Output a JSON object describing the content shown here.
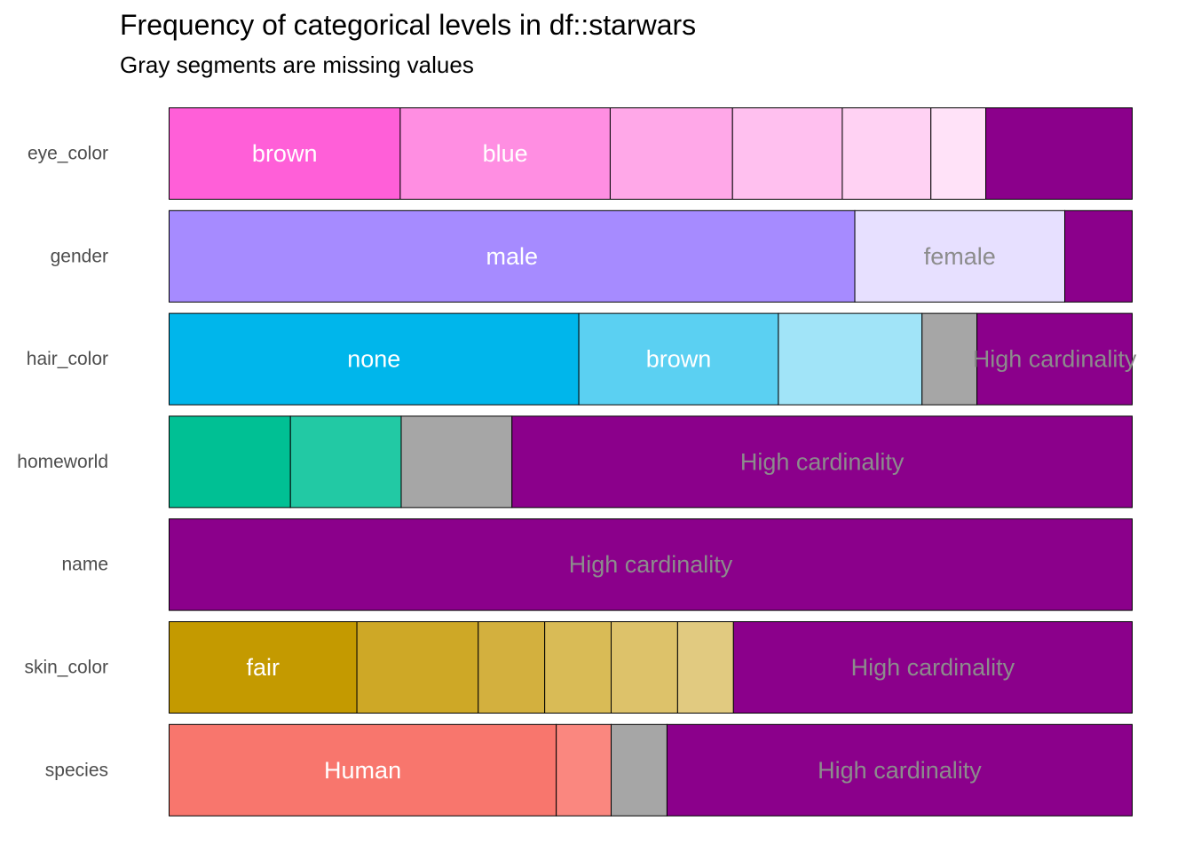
{
  "chart_data": {
    "type": "bar",
    "orientation": "horizontal",
    "stacked": "proportional",
    "title": "Frequency of categorical levels in df::starwars",
    "subtitle": "Gray segments are missing values",
    "xlabel": "",
    "ylabel": "",
    "xlim": [
      0,
      1
    ],
    "grid": false,
    "legend": "none",
    "colors": {
      "missing": "#a6a6a6",
      "high_cardinality": "#8b008b",
      "label_light": "#ffffff",
      "label_muted": "#8c8c8c",
      "outline": "#000000"
    },
    "variables": [
      {
        "name": "eye_color",
        "segments": [
          {
            "label": "brown",
            "value": 0.24,
            "color": "#ff5fd8",
            "show_label": true,
            "label_color": "#ffffff"
          },
          {
            "label": "blue",
            "value": 0.218,
            "color": "#ff8ee2",
            "show_label": true,
            "label_color": "#ffffff"
          },
          {
            "label": "",
            "value": 0.127,
            "color": "#ffa8e8",
            "show_label": false
          },
          {
            "label": "",
            "value": 0.114,
            "color": "#ffc0ef",
            "show_label": false
          },
          {
            "label": "",
            "value": 0.092,
            "color": "#ffd2f3",
            "show_label": false
          },
          {
            "label": "",
            "value": 0.057,
            "color": "#ffe2f8",
            "show_label": false
          },
          {
            "label": "",
            "value": 0.152,
            "color": "#8b008b",
            "show_label": false
          }
        ]
      },
      {
        "name": "gender",
        "segments": [
          {
            "label": "male",
            "value": 0.712,
            "color": "#a68bff",
            "show_label": true,
            "label_color": "#ffffff"
          },
          {
            "label": "female",
            "value": 0.218,
            "color": "#e7e0ff",
            "show_label": true,
            "label_color": "#8c8c8c"
          },
          {
            "label": "",
            "value": 0.07,
            "color": "#8b008b",
            "show_label": false
          }
        ]
      },
      {
        "name": "hair_color",
        "segments": [
          {
            "label": "none",
            "value": 0.425,
            "color": "#00b6eb",
            "show_label": true,
            "label_color": "#ffffff"
          },
          {
            "label": "brown",
            "value": 0.207,
            "color": "#5bd0f2",
            "show_label": true,
            "label_color": "#ffffff"
          },
          {
            "label": "",
            "value": 0.149,
            "color": "#a1e4f8",
            "show_label": false
          },
          {
            "label": "",
            "value": 0.057,
            "color": "#a6a6a6",
            "show_label": false
          },
          {
            "label": "High cardinality",
            "value": 0.161,
            "color": "#8b008b",
            "show_label": true,
            "label_color": "#8c8c8c"
          }
        ]
      },
      {
        "name": "homeworld",
        "segments": [
          {
            "label": "",
            "value": 0.126,
            "color": "#00c094",
            "show_label": false
          },
          {
            "label": "",
            "value": 0.115,
            "color": "#22c9a4",
            "show_label": false
          },
          {
            "label": "",
            "value": 0.115,
            "color": "#a6a6a6",
            "show_label": false
          },
          {
            "label": "High cardinality",
            "value": 0.644,
            "color": "#8b008b",
            "show_label": true,
            "label_color": "#8c8c8c"
          }
        ]
      },
      {
        "name": "name",
        "segments": [
          {
            "label": "High cardinality",
            "value": 1.0,
            "color": "#8b008b",
            "show_label": true,
            "label_color": "#8c8c8c"
          }
        ]
      },
      {
        "name": "skin_color",
        "segments": [
          {
            "label": "fair",
            "value": 0.195,
            "color": "#c49a00",
            "show_label": true,
            "label_color": "#ffffff"
          },
          {
            "label": "",
            "value": 0.126,
            "color": "#cea826",
            "show_label": false
          },
          {
            "label": "",
            "value": 0.069,
            "color": "#d3b03e",
            "show_label": false
          },
          {
            "label": "",
            "value": 0.069,
            "color": "#d9bb56",
            "show_label": false
          },
          {
            "label": "",
            "value": 0.069,
            "color": "#ddc26a",
            "show_label": false
          },
          {
            "label": "",
            "value": 0.058,
            "color": "#e1ca80",
            "show_label": false
          },
          {
            "label": "High cardinality",
            "value": 0.414,
            "color": "#8b008b",
            "show_label": true,
            "label_color": "#8c8c8c"
          }
        ]
      },
      {
        "name": "species",
        "segments": [
          {
            "label": "Human",
            "value": 0.402,
            "color": "#f8766d",
            "show_label": true,
            "label_color": "#ffffff"
          },
          {
            "label": "",
            "value": 0.057,
            "color": "#fa877f",
            "show_label": false
          },
          {
            "label": "",
            "value": 0.058,
            "color": "#a6a6a6",
            "show_label": false
          },
          {
            "label": "High cardinality",
            "value": 0.483,
            "color": "#8b008b",
            "show_label": true,
            "label_color": "#8c8c8c"
          }
        ]
      }
    ]
  }
}
